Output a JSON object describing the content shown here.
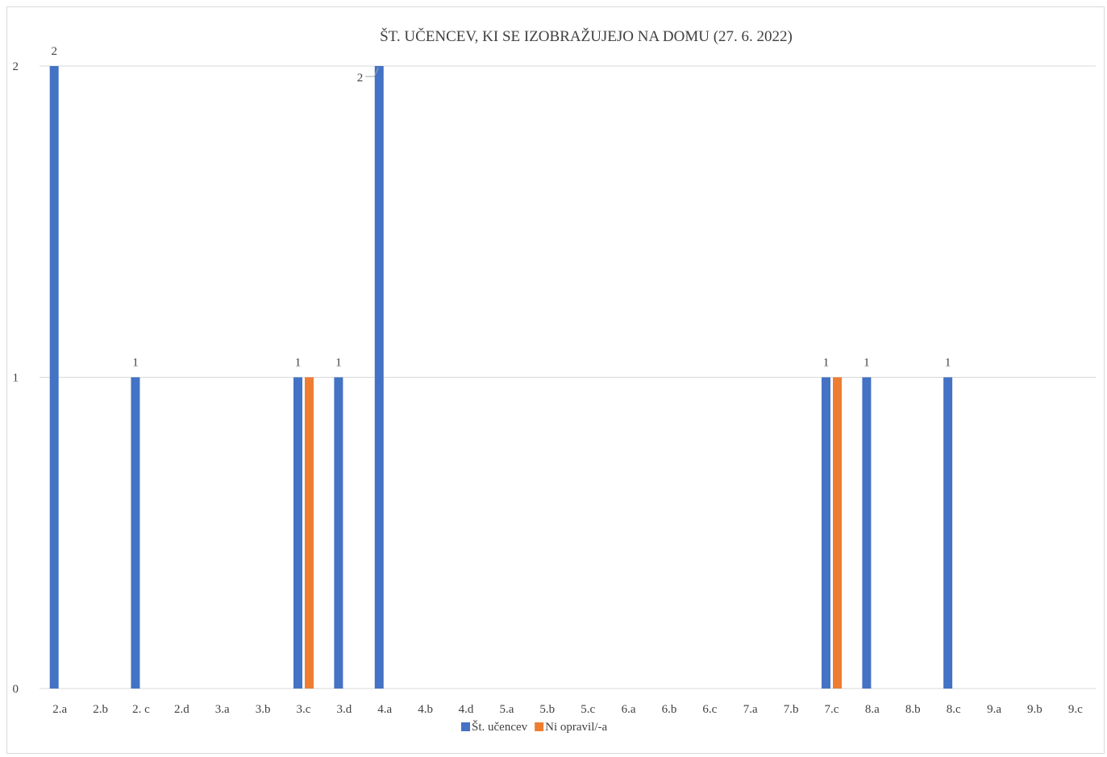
{
  "chart_data": {
    "type": "bar",
    "title": "ŠT. UČENCEV, KI SE IZOBRAŽUJEJO NA DOMU (27. 6. 2022)",
    "categories": [
      "2.a",
      "2.b",
      "2. c",
      "2.d",
      "3.a",
      "3.b",
      "3.c",
      "3.d",
      "4.a",
      "4.b",
      "4.d",
      "5.a",
      "5.b",
      "5.c",
      "6.a",
      "6.b",
      "6.c",
      "7.a",
      "7.b",
      "7.c",
      "8.a",
      "8.b",
      "8.c",
      "9.a",
      "9.b",
      "9.c"
    ],
    "series": [
      {
        "name": "Št. učencev",
        "color": "#4472c4",
        "values": [
          2,
          0,
          1,
          0,
          0,
          0,
          1,
          1,
          2,
          0,
          0,
          0,
          0,
          0,
          0,
          0,
          0,
          0,
          0,
          1,
          1,
          0,
          1,
          0,
          0,
          0
        ]
      },
      {
        "name": "Ni opravil/-a",
        "color": "#ed7d31",
        "values": [
          0,
          0,
          0,
          0,
          0,
          0,
          1,
          0,
          0,
          0,
          0,
          0,
          0,
          0,
          0,
          0,
          0,
          0,
          0,
          1,
          0,
          0,
          0,
          0,
          0,
          0
        ]
      }
    ],
    "data_labels": [
      {
        "series": 0,
        "category": "2.a",
        "text": "2"
      },
      {
        "series": 0,
        "category": "2. c",
        "text": "1"
      },
      {
        "series": 0,
        "category": "3.c",
        "text": "1"
      },
      {
        "series": 0,
        "category": "3.d",
        "text": "1"
      },
      {
        "series": 0,
        "category": "4.a",
        "text": "2",
        "leader": true
      },
      {
        "series": 0,
        "category": "7.c",
        "text": "1"
      },
      {
        "series": 0,
        "category": "8.a",
        "text": "1"
      },
      {
        "series": 0,
        "category": "8.c",
        "text": "1"
      }
    ],
    "yticks": [
      "0",
      "1",
      "2"
    ],
    "ylim": [
      0,
      2
    ],
    "xlabel": "",
    "ylabel": "",
    "grid": true,
    "legend_position": "bottom"
  }
}
